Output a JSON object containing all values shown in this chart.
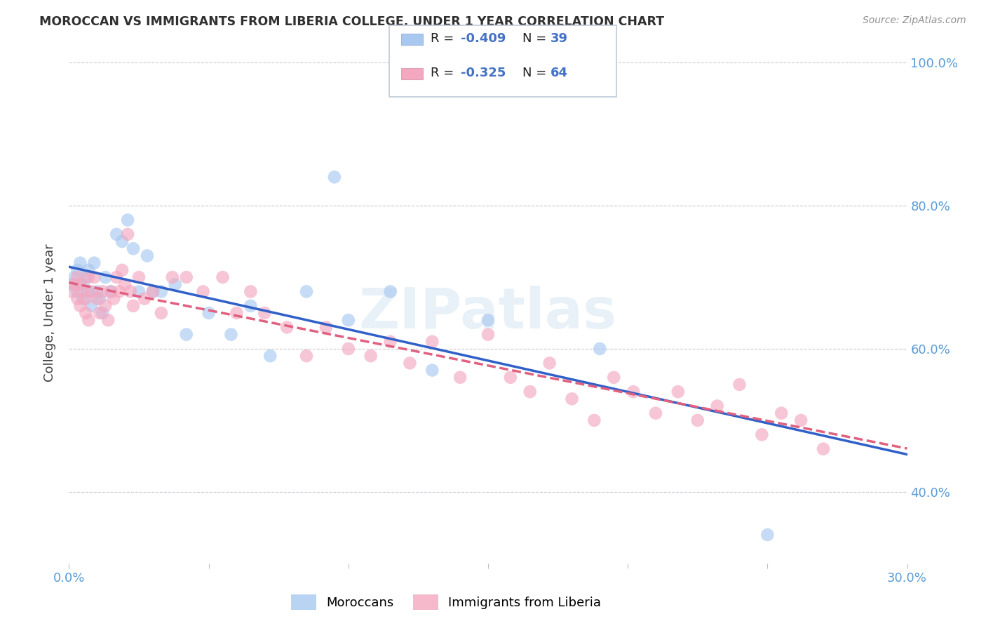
{
  "title": "MOROCCAN VS IMMIGRANTS FROM LIBERIA COLLEGE, UNDER 1 YEAR CORRELATION CHART",
  "source": "Source: ZipAtlas.com",
  "ylabel": "College, Under 1 year",
  "x_min": 0.0,
  "x_max": 0.3,
  "y_min": 0.3,
  "y_max": 1.0,
  "moroccan_R": -0.409,
  "moroccan_N": 39,
  "liberia_R": -0.325,
  "liberia_N": 64,
  "moroccan_color": "#A8C8F0",
  "liberia_color": "#F4A8C0",
  "moroccan_line_color": "#3060C8",
  "liberia_line_color": "#E06080",
  "watermark": "ZIPatlas",
  "moroccan_x": [
    0.001,
    0.002,
    0.003,
    0.003,
    0.004,
    0.005,
    0.005,
    0.006,
    0.007,
    0.007,
    0.008,
    0.009,
    0.01,
    0.011,
    0.012,
    0.013,
    0.015,
    0.017,
    0.019,
    0.021,
    0.023,
    0.025,
    0.028,
    0.03,
    0.033,
    0.038,
    0.042,
    0.05,
    0.058,
    0.065,
    0.072,
    0.085,
    0.095,
    0.1,
    0.115,
    0.13,
    0.15,
    0.19,
    0.25
  ],
  "moroccan_y": [
    0.69,
    0.7,
    0.71,
    0.68,
    0.72,
    0.69,
    0.67,
    0.7,
    0.71,
    0.68,
    0.66,
    0.72,
    0.68,
    0.67,
    0.65,
    0.7,
    0.68,
    0.76,
    0.75,
    0.78,
    0.74,
    0.68,
    0.73,
    0.68,
    0.68,
    0.69,
    0.62,
    0.65,
    0.62,
    0.66,
    0.59,
    0.68,
    0.84,
    0.64,
    0.68,
    0.57,
    0.64,
    0.6,
    0.34
  ],
  "liberia_x": [
    0.001,
    0.002,
    0.003,
    0.003,
    0.004,
    0.004,
    0.005,
    0.006,
    0.006,
    0.007,
    0.007,
    0.008,
    0.009,
    0.01,
    0.011,
    0.012,
    0.013,
    0.014,
    0.015,
    0.016,
    0.017,
    0.018,
    0.019,
    0.02,
    0.021,
    0.022,
    0.023,
    0.025,
    0.027,
    0.03,
    0.033,
    0.037,
    0.042,
    0.048,
    0.055,
    0.06,
    0.065,
    0.07,
    0.078,
    0.085,
    0.092,
    0.1,
    0.108,
    0.115,
    0.122,
    0.13,
    0.14,
    0.15,
    0.158,
    0.165,
    0.172,
    0.18,
    0.188,
    0.195,
    0.202,
    0.21,
    0.218,
    0.225,
    0.232,
    0.24,
    0.248,
    0.255,
    0.262,
    0.27
  ],
  "liberia_y": [
    0.68,
    0.69,
    0.7,
    0.67,
    0.69,
    0.66,
    0.68,
    0.67,
    0.65,
    0.7,
    0.64,
    0.68,
    0.7,
    0.67,
    0.65,
    0.68,
    0.66,
    0.64,
    0.68,
    0.67,
    0.7,
    0.68,
    0.71,
    0.69,
    0.76,
    0.68,
    0.66,
    0.7,
    0.67,
    0.68,
    0.65,
    0.7,
    0.7,
    0.68,
    0.7,
    0.65,
    0.68,
    0.65,
    0.63,
    0.59,
    0.63,
    0.6,
    0.59,
    0.61,
    0.58,
    0.61,
    0.56,
    0.62,
    0.56,
    0.54,
    0.58,
    0.53,
    0.5,
    0.56,
    0.54,
    0.51,
    0.54,
    0.5,
    0.52,
    0.55,
    0.48,
    0.51,
    0.5,
    0.46
  ]
}
